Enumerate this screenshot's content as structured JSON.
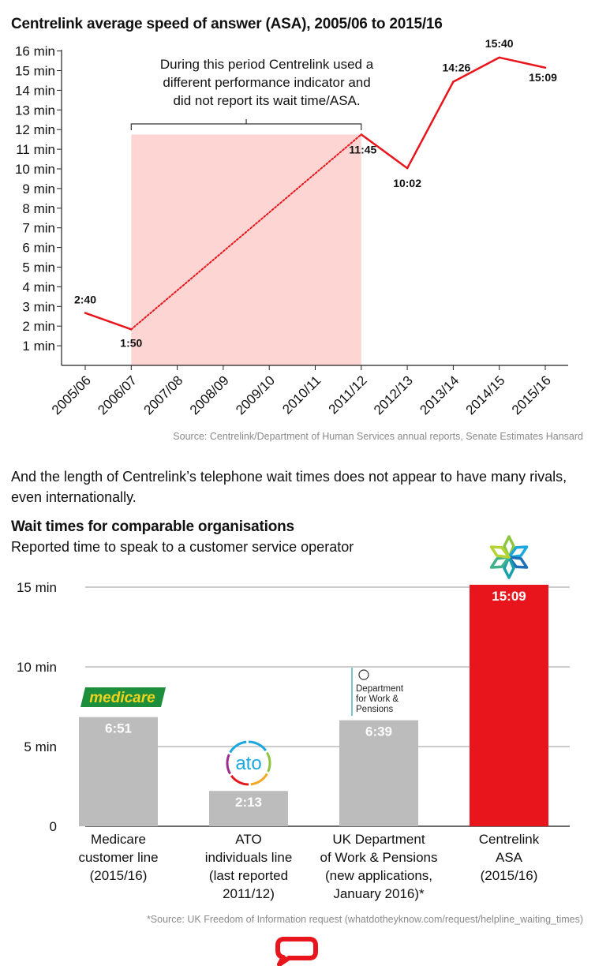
{
  "chart1": {
    "title": "Centrelink average speed of answer (ASA), 2005/06 to 2015/16",
    "source": "Source: Centrelink/Department of Human Services annual reports, Senate Estimates Hansard",
    "annotation": [
      "During this period Centrelink used a",
      "different performance indicator and",
      "did not report its wait time/ASA."
    ],
    "colors": {
      "line": "#e8161c",
      "shade": "#fdd5d3",
      "axis": "#222222"
    }
  },
  "paragraph": "And the length of Centrelink’s telephone wait times does not appear to have many rivals, even internationally.",
  "chart2": {
    "title": "Wait times for comparable organisations",
    "subtitle": "Reported time to speak to a customer service operator",
    "source": "*Source: UK Freedom of Information request (whatdotheyknow.com/request/helpline_waiting_times)",
    "logos": {
      "medicare": "medicare",
      "ato": "ato",
      "dwp": [
        "Department",
        "for Work &",
        "Pensions"
      ]
    },
    "colors": {
      "grey": "#bcbcbc",
      "red": "#e8161c",
      "grid": "#9a9a9a"
    }
  },
  "chart_data": [
    {
      "type": "line",
      "title": "Centrelink average speed of answer (ASA), 2005/06 to 2015/16",
      "categories": [
        "2005/06",
        "2006/07",
        "2007/08",
        "2008/09",
        "2009/10",
        "2010/11",
        "2011/12",
        "2012/13",
        "2013/14",
        "2014/15",
        "2015/16"
      ],
      "y_ticks": [
        "1 min",
        "2 min",
        "3 min",
        "4 min",
        "5 min",
        "6 min",
        "7 min",
        "8 min",
        "9 min",
        "10 min",
        "11 min",
        "12 min",
        "13 min",
        "14 min",
        "15 min",
        "16 min"
      ],
      "ylim": [
        0,
        16
      ],
      "series": [
        {
          "points": [
            {
              "x": "2005/06",
              "y": 2.667,
              "label": "2:40"
            },
            {
              "x": "2006/07",
              "y": 1.833,
              "label": "1:50"
            },
            {
              "x": "2011/12",
              "y": 11.75,
              "label": "11:45"
            },
            {
              "x": "2012/13",
              "y": 10.033,
              "label": "10:02"
            },
            {
              "x": "2013/14",
              "y": 14.433,
              "label": "14:26"
            },
            {
              "x": "2014/15",
              "y": 15.667,
              "label": "15:40"
            },
            {
              "x": "2015/16",
              "y": 15.15,
              "label": "15:09"
            }
          ]
        }
      ],
      "dotted_segment": [
        "2006/07",
        "2011/12"
      ],
      "shaded_range": [
        "2006/07",
        "2011/12"
      ]
    },
    {
      "type": "bar",
      "title": "Wait times for comparable organisations",
      "subtitle": "Reported time to speak to a customer service operator",
      "y_ticks": [
        "0",
        "5 min",
        "10 min",
        "15 min"
      ],
      "ylim": [
        0,
        15
      ],
      "bars": [
        {
          "category": [
            "Medicare",
            "customer line",
            "(2015/16)"
          ],
          "value": 6.85,
          "label": "6:51",
          "color": "#bcbcbc"
        },
        {
          "category": [
            "ATO",
            "individuals line",
            "(last reported",
            "2011/12)"
          ],
          "value": 2.217,
          "label": "2:13",
          "color": "#bcbcbc"
        },
        {
          "category": [
            "UK Department",
            "of Work & Pensions",
            "(new applications,",
            "January 2016)*"
          ],
          "value": 6.65,
          "label": "6:39",
          "color": "#bcbcbc"
        },
        {
          "category": [
            "Centrelink",
            "ASA",
            "(2015/16)"
          ],
          "value": 15.15,
          "label": "15:09",
          "color": "#e8161c"
        }
      ]
    }
  ]
}
